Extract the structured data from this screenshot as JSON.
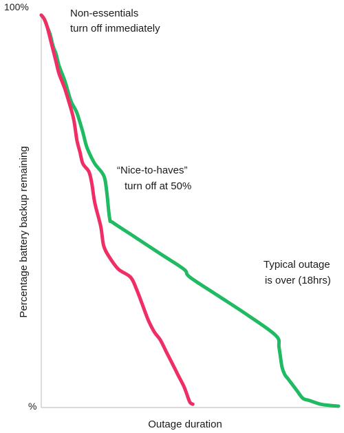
{
  "chart_data": {
    "type": "line",
    "xlabel": "Outage duration",
    "ylabel": "Percentage battery backup remaining",
    "y_ticks": [
      "100%",
      "%"
    ],
    "ylim": [
      0,
      100
    ],
    "xlim": [
      0,
      1
    ],
    "grid": false,
    "annotations": [
      {
        "lines": [
          "Non-essentials",
          "turn off immediately"
        ]
      },
      {
        "lines": [
          "“Nice-to-haves”",
          "turn off at 50%"
        ]
      },
      {
        "lines": [
          "Typical outage",
          "is over (18hrs)"
        ]
      }
    ],
    "series": [
      {
        "color": "#1fba62",
        "x": [
          0,
          0.01,
          0.02,
          0.03,
          0.04,
          0.05,
          0.06,
          0.08,
          0.1,
          0.12,
          0.14,
          0.15,
          0.16,
          0.18,
          0.21,
          0.22,
          0.23,
          0.24,
          0.3,
          0.4,
          0.48,
          0.5,
          0.6,
          0.7,
          0.79,
          0.8,
          0.81,
          0.82,
          0.83,
          0.84,
          0.86,
          0.88,
          0.9,
          0.94,
          0.97,
          1.0
        ],
        "y": [
          100,
          99,
          97,
          95,
          92,
          90,
          87,
          83,
          78,
          75,
          70,
          67,
          65,
          62,
          59,
          55,
          48,
          47,
          44,
          39,
          35,
          33,
          28,
          23,
          18,
          15,
          10,
          8,
          7,
          6,
          4,
          2,
          1.5,
          0.5,
          0.2,
          0
        ]
      },
      {
        "color": "#ef2e66",
        "x": [
          0,
          0.01,
          0.02,
          0.03,
          0.04,
          0.05,
          0.06,
          0.08,
          0.1,
          0.11,
          0.12,
          0.13,
          0.14,
          0.16,
          0.17,
          0.18,
          0.2,
          0.21,
          0.23,
          0.26,
          0.3,
          0.32,
          0.34,
          0.36,
          0.38,
          0.4,
          0.42,
          0.44,
          0.46,
          0.48,
          0.49,
          0.5,
          0.51
        ],
        "y": [
          100,
          99,
          97,
          94,
          91,
          88,
          85,
          81,
          76,
          73,
          68,
          65,
          62,
          60,
          57,
          52,
          46,
          41,
          38,
          35,
          33,
          30,
          26,
          22,
          19,
          17,
          14,
          11,
          8,
          5,
          3,
          1,
          0.5
        ]
      }
    ]
  }
}
